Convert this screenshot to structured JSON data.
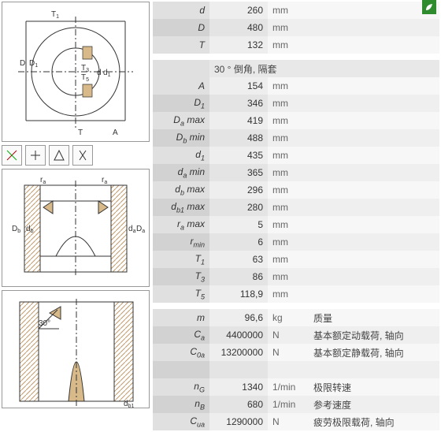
{
  "header_extra": "30 °  倒角, 隔套",
  "g1": [
    {
      "sym": "d",
      "val": "260",
      "unit": "mm",
      "desc": ""
    },
    {
      "sym": "D",
      "val": "480",
      "unit": "mm",
      "desc": ""
    },
    {
      "sym": "T",
      "val": "132",
      "unit": "mm",
      "desc": ""
    }
  ],
  "g2": [
    {
      "sym": "A",
      "val": "154",
      "unit": "mm",
      "desc": ""
    },
    {
      "sym": "D<sub>1</sub>",
      "val": "346",
      "unit": "mm",
      "desc": ""
    },
    {
      "sym": "D<sub>a</sub> max",
      "val": "419",
      "unit": "mm",
      "desc": ""
    },
    {
      "sym": "D<sub>b</sub> min",
      "val": "488",
      "unit": "mm",
      "desc": ""
    },
    {
      "sym": "d<sub>1</sub>",
      "val": "435",
      "unit": "mm",
      "desc": ""
    },
    {
      "sym": "d<sub>a</sub> min",
      "val": "365",
      "unit": "mm",
      "desc": ""
    },
    {
      "sym": "d<sub>b</sub> max",
      "val": "296",
      "unit": "mm",
      "desc": ""
    },
    {
      "sym": "d<sub>b1</sub> max",
      "val": "280",
      "unit": "mm",
      "desc": ""
    },
    {
      "sym": "r<sub>a</sub> max",
      "val": "5",
      "unit": "mm",
      "desc": ""
    },
    {
      "sym": "r<sub>min</sub>",
      "val": "6",
      "unit": "mm",
      "desc": ""
    },
    {
      "sym": "T<sub>1</sub>",
      "val": "63",
      "unit": "mm",
      "desc": ""
    },
    {
      "sym": "T<sub>3</sub>",
      "val": "86",
      "unit": "mm",
      "desc": ""
    },
    {
      "sym": "T<sub>5</sub>",
      "val": "118,9",
      "unit": "mm",
      "desc": ""
    }
  ],
  "g3": [
    {
      "sym": "m",
      "val": "96,6",
      "unit": "kg",
      "desc": "质量"
    },
    {
      "sym": "C<sub>a</sub>",
      "val": "4400000",
      "unit": "N",
      "desc": "基本额定动载荷, 轴向"
    },
    {
      "sym": "C<sub>0a</sub>",
      "val": "13200000",
      "unit": "N",
      "desc": "基本额定静载荷, 轴向"
    },
    {
      "sym": "",
      "val": "",
      "unit": "",
      "desc": ""
    },
    {
      "sym": "n<sub>G</sub>",
      "val": "1340",
      "unit": "1/min",
      "desc": "极限转速"
    },
    {
      "sym": "n<sub>B</sub>",
      "val": "680",
      "unit": "1/min",
      "desc": "参考速度"
    },
    {
      "sym": "C<sub>ua</sub>",
      "val": "1290000",
      "unit": "N",
      "desc": "疲劳极限载荷, 轴向"
    }
  ],
  "colors": {
    "sym_bg": "#e0e0e0",
    "val_bg": "#eeeeee",
    "unit_bg": "#f7f7f7",
    "hatch": "#ccaa77"
  }
}
